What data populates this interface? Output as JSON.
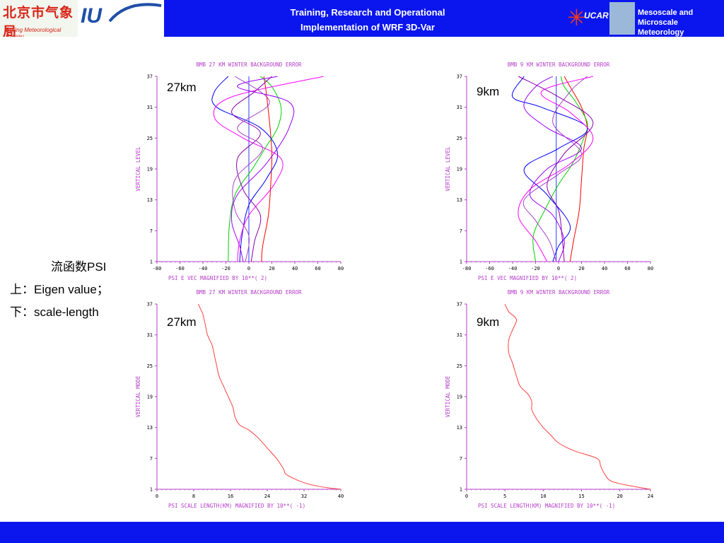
{
  "header": {
    "title_line1": "Training, Research and Operational",
    "title_line2": "Implementation of WRF 3D-Var",
    "logo_bj_zh": "北京市气象局",
    "logo_bj_en": "Beijing Meteorological Bureau",
    "ucar_text": "UCAR",
    "mmm_line1": "Mesoscale and",
    "mmm_line2": "Microscale Meteorology",
    "colors": {
      "bar": "#0b16ee",
      "text": "#ffffff"
    }
  },
  "sidebar": {
    "line1": "流函数PSI",
    "line2": "上：Eigen value；",
    "line3": "下：scale-length"
  },
  "chart_data": [
    {
      "type": "line",
      "title": "BMB 27 KM WINTER BACKGROUND ERROR",
      "xlabel": "PSI    E VEC MAGNIFIED BY 10**(  2)",
      "ylabel": "VERTICAL LEVEL",
      "resolution_label": "27km",
      "xlim": [
        -80,
        80
      ],
      "ylim": [
        1,
        37
      ],
      "xticks": [
        "-80",
        "-60",
        "-40",
        "-20",
        "0",
        "20",
        "40",
        "60",
        "80"
      ],
      "yticks": [
        "1",
        "7",
        "13",
        "19",
        "25",
        "31",
        "37"
      ],
      "reference_line_x": 0,
      "series": [
        {
          "color": "#ff0000",
          "points": [
            [
              11,
              1
            ],
            [
              12,
              4
            ],
            [
              17,
              10
            ],
            [
              19,
              16
            ],
            [
              20,
              22
            ],
            [
              18,
              28
            ],
            [
              15,
              34
            ],
            [
              13,
              37
            ]
          ]
        },
        {
          "color": "#00d000",
          "points": [
            [
              -18,
              1
            ],
            [
              -17,
              8
            ],
            [
              -12,
              14
            ],
            [
              3,
              19
            ],
            [
              14,
              23
            ],
            [
              25,
              27
            ],
            [
              28,
              31
            ],
            [
              20,
              35
            ],
            [
              10,
              37
            ]
          ]
        },
        {
          "color": "#0000ff",
          "points": [
            [
              -8,
              1
            ],
            [
              -6,
              6
            ],
            [
              0,
              12
            ],
            [
              15,
              17
            ],
            [
              25,
              22
            ],
            [
              10,
              27
            ],
            [
              -28,
              31
            ],
            [
              -30,
              34
            ],
            [
              -18,
              37
            ]
          ]
        },
        {
          "color": "#ff00ff",
          "points": [
            [
              -10,
              1
            ],
            [
              -8,
              5
            ],
            [
              0,
              10
            ],
            [
              22,
              16
            ],
            [
              28,
              21
            ],
            [
              -5,
              25
            ],
            [
              -30,
              29
            ],
            [
              -15,
              33
            ],
            [
              65,
              37
            ]
          ]
        },
        {
          "color": "#9900ff",
          "points": [
            [
              -5,
              1
            ],
            [
              -8,
              4
            ],
            [
              -15,
              9
            ],
            [
              -10,
              14
            ],
            [
              15,
              20
            ],
            [
              35,
              27
            ],
            [
              35,
              32
            ],
            [
              -10,
              35
            ],
            [
              25,
              37
            ]
          ]
        },
        {
          "color": "#8800aa",
          "points": [
            [
              2,
              1
            ],
            [
              5,
              5
            ],
            [
              10,
              10
            ],
            [
              -5,
              15
            ],
            [
              -10,
              21
            ],
            [
              10,
              26
            ],
            [
              -15,
              30
            ],
            [
              5,
              34
            ],
            [
              20,
              37
            ]
          ]
        },
        {
          "color": "#aa44cc",
          "points": [
            [
              -3,
              1
            ],
            [
              0,
              6
            ],
            [
              -12,
              11
            ],
            [
              -12,
              17
            ],
            [
              12,
              23
            ],
            [
              -10,
              27
            ],
            [
              18,
              32
            ],
            [
              -12,
              37
            ]
          ]
        }
      ]
    },
    {
      "type": "line",
      "title": "BMB 9 KM WINTER BACKGROUND ERROR",
      "xlabel": "PSI    E VEC MAGNIFIED BY 10**(  2)",
      "ylabel": "VERTICAL LEVEL",
      "resolution_label": "9km",
      "xlim": [
        -80,
        80
      ],
      "ylim": [
        1,
        37
      ],
      "xticks": [
        "-80",
        "-60",
        "-40",
        "-20",
        "0",
        "20",
        "40",
        "60",
        "80"
      ],
      "yticks": [
        "1",
        "7",
        "13",
        "19",
        "25",
        "31",
        "37"
      ],
      "reference_line_x": -2,
      "series": [
        {
          "color": "#ff0000",
          "points": [
            [
              10,
              1
            ],
            [
              13,
              5
            ],
            [
              18,
              11
            ],
            [
              20,
              17
            ],
            [
              22,
              23
            ],
            [
              25,
              27
            ],
            [
              20,
              31
            ],
            [
              10,
              35
            ],
            [
              5,
              37
            ]
          ]
        },
        {
          "color": "#00d000",
          "points": [
            [
              -20,
              1
            ],
            [
              -22,
              6
            ],
            [
              -12,
              11
            ],
            [
              0,
              16
            ],
            [
              12,
              20
            ],
            [
              22,
              25
            ],
            [
              25,
              28
            ],
            [
              15,
              32
            ],
            [
              5,
              35
            ],
            [
              2,
              37
            ]
          ]
        },
        {
          "color": "#0000ff",
          "points": [
            [
              -5,
              1
            ],
            [
              0,
              4
            ],
            [
              10,
              8
            ],
            [
              -10,
              14
            ],
            [
              -30,
              19
            ],
            [
              0,
              23
            ],
            [
              25,
              27
            ],
            [
              -15,
              31
            ],
            [
              -40,
              33
            ],
            [
              -30,
              37
            ]
          ]
        },
        {
          "color": "#ff00ff",
          "points": [
            [
              -10,
              1
            ],
            [
              -20,
              5
            ],
            [
              -35,
              10
            ],
            [
              -25,
              15
            ],
            [
              10,
              20
            ],
            [
              30,
              25
            ],
            [
              10,
              30
            ],
            [
              -15,
              34
            ],
            [
              30,
              37
            ]
          ]
        },
        {
          "color": "#9900ff",
          "points": [
            [
              0,
              1
            ],
            [
              5,
              5
            ],
            [
              -5,
              10
            ],
            [
              -25,
              14
            ],
            [
              -10,
              19
            ],
            [
              20,
              23
            ],
            [
              -10,
              27
            ],
            [
              -30,
              31
            ],
            [
              -20,
              35
            ],
            [
              -5,
              37
            ]
          ]
        },
        {
          "color": "#8800aa",
          "points": [
            [
              5,
              1
            ],
            [
              3,
              6
            ],
            [
              0,
              11
            ],
            [
              -10,
              16
            ],
            [
              5,
              22
            ],
            [
              30,
              28
            ],
            [
              0,
              33
            ],
            [
              -35,
              37
            ]
          ]
        },
        {
          "color": "#aa44cc",
          "points": [
            [
              -2,
              1
            ],
            [
              -8,
              5
            ],
            [
              -20,
              9
            ],
            [
              -30,
              13
            ],
            [
              0,
              18
            ],
            [
              20,
              22
            ],
            [
              -5,
              28
            ],
            [
              10,
              34
            ],
            [
              25,
              37
            ]
          ]
        }
      ]
    },
    {
      "type": "line",
      "title": "BMB 27 KM WINTER BACKGROUND ERROR",
      "xlabel": "PSI    SCALE LENGTH(KM) MAGNIFIED BY 10**( -1)",
      "ylabel": "VERTICAL MODE",
      "resolution_label": "27km",
      "xlim": [
        0,
        40
      ],
      "ylim": [
        1,
        37
      ],
      "xticks": [
        "0",
        "8",
        "16",
        "24",
        "32",
        "40"
      ],
      "yticks": [
        "1",
        "7",
        "13",
        "19",
        "25",
        "31",
        "37"
      ],
      "series": [
        {
          "color": "#ff4040",
          "points": [
            [
              40,
              1
            ],
            [
              37,
              1.3
            ],
            [
              33,
              2
            ],
            [
              30,
              3
            ],
            [
              28,
              4
            ],
            [
              27.5,
              5
            ],
            [
              26,
              7
            ],
            [
              24,
              9
            ],
            [
              22,
              11
            ],
            [
              20,
              12.5
            ],
            [
              18,
              13.5
            ],
            [
              17,
              15
            ],
            [
              16.5,
              17
            ],
            [
              15.5,
              19
            ],
            [
              14.5,
              21
            ],
            [
              13.5,
              23
            ],
            [
              13,
              25
            ],
            [
              12.5,
              27
            ],
            [
              12,
              29
            ],
            [
              11,
              31
            ],
            [
              10.5,
              33
            ],
            [
              10,
              35
            ],
            [
              9.5,
              36
            ],
            [
              9,
              37
            ]
          ]
        }
      ]
    },
    {
      "type": "line",
      "title": "BMB 9 KM WINTER BACKGROUND ERROR",
      "xlabel": "PSI    SCALE LENGTH(KM) MAGNIFIED BY 10**( -1)",
      "ylabel": "VERTICAL MODE",
      "resolution_label": "9km",
      "xlim": [
        0,
        24
      ],
      "ylim": [
        1,
        37
      ],
      "xticks": [
        "0",
        "5",
        "10",
        "15",
        "20",
        "24"
      ],
      "yticks": [
        "1",
        "7",
        "13",
        "19",
        "25",
        "31",
        "37"
      ],
      "series": [
        {
          "color": "#ff4040",
          "points": [
            [
              24,
              1
            ],
            [
              22,
              1.5
            ],
            [
              19,
              2.5
            ],
            [
              18,
              4
            ],
            [
              17.5,
              5.5
            ],
            [
              17,
              7
            ],
            [
              14,
              8.5
            ],
            [
              12,
              10
            ],
            [
              11,
              11.5
            ],
            [
              10,
              13
            ],
            [
              9,
              15
            ],
            [
              8.5,
              16.5
            ],
            [
              8.5,
              18
            ],
            [
              8,
              19.5
            ],
            [
              7,
              21
            ],
            [
              6.5,
              23
            ],
            [
              6,
              25.5
            ],
            [
              5.5,
              27.5
            ],
            [
              5.5,
              30
            ],
            [
              6,
              32
            ],
            [
              6.5,
              34
            ],
            [
              5.5,
              35.5
            ],
            [
              5,
              37
            ]
          ]
        }
      ]
    }
  ]
}
